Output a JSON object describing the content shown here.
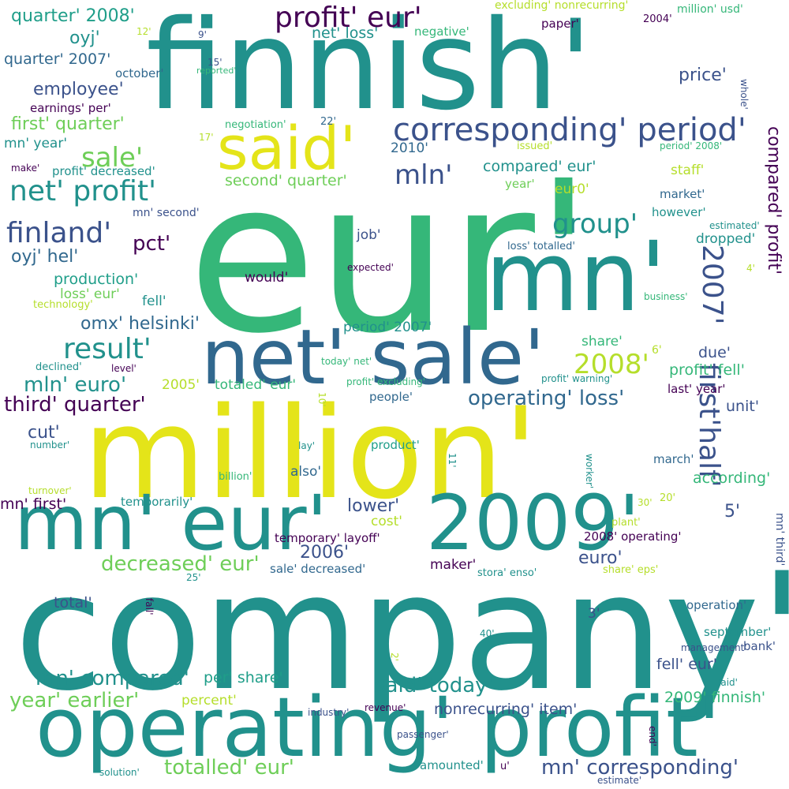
{
  "palette": {
    "dark_purple": "#440154",
    "indigo": "#3b528b",
    "slate_blue": "#31688e",
    "teal": "#21918c",
    "sea_green": "#1f9e89",
    "green": "#35b779",
    "light_green": "#6ece58",
    "lime": "#b5de2b",
    "yellow": "#e4e419"
  },
  "words": [
    {
      "text": "eur'",
      "weight": 1.0,
      "color": "green"
    },
    {
      "text": "company'",
      "weight": 0.92,
      "color": "teal"
    },
    {
      "text": "million'",
      "weight": 0.72,
      "color": "yellow"
    },
    {
      "text": "finnish'",
      "weight": 0.7,
      "color": "teal"
    },
    {
      "text": "mn'",
      "weight": 0.55,
      "color": "teal"
    },
    {
      "text": "operating' profit'",
      "weight": 0.46,
      "color": "teal"
    },
    {
      "text": "net' sale'",
      "weight": 0.43,
      "color": "slate_blue"
    },
    {
      "text": "mn' eur'",
      "weight": 0.43,
      "color": "teal"
    },
    {
      "text": "2009'",
      "weight": 0.43,
      "color": "teal"
    },
    {
      "text": "said'",
      "weight": 0.34,
      "color": "yellow"
    },
    {
      "text": "corresponding' period'",
      "weight": 0.18,
      "color": "indigo"
    },
    {
      "text": "profit' eur'",
      "weight": 0.16,
      "color": "dark_purple"
    },
    {
      "text": "net' profit'",
      "weight": 0.16,
      "color": "teal"
    },
    {
      "text": "finland'",
      "weight": 0.16,
      "color": "indigo"
    },
    {
      "text": "result'",
      "weight": 0.16,
      "color": "teal"
    },
    {
      "text": "first'half'",
      "weight": 0.16,
      "color": "indigo"
    },
    {
      "text": "2007'",
      "weight": 0.15,
      "color": "indigo"
    },
    {
      "text": "mln'",
      "weight": 0.15,
      "color": "indigo"
    },
    {
      "text": "group'",
      "weight": 0.15,
      "color": "teal"
    },
    {
      "text": "sale'",
      "weight": 0.15,
      "color": "light_green"
    },
    {
      "text": "2008'",
      "weight": 0.15,
      "color": "lime"
    },
    {
      "text": "third' quarter'",
      "weight": 0.12,
      "color": "dark_purple"
    },
    {
      "text": "mn' compared'",
      "weight": 0.12,
      "color": "teal"
    },
    {
      "text": "decreased' eur'",
      "weight": 0.12,
      "color": "light_green"
    },
    {
      "text": "totalled' eur'",
      "weight": 0.12,
      "color": "light_green"
    },
    {
      "text": "mn' corresponding'",
      "weight": 0.12,
      "color": "indigo"
    },
    {
      "text": "said' today'",
      "weight": 0.12,
      "color": "teal"
    },
    {
      "text": "operating' loss'",
      "weight": 0.12,
      "color": "slate_blue"
    },
    {
      "text": "mln' euro'",
      "weight": 0.12,
      "color": "teal"
    },
    {
      "text": "year' earlier'",
      "weight": 0.12,
      "color": "light_green"
    },
    {
      "text": "pct'",
      "weight": 0.12,
      "color": "dark_purple"
    },
    {
      "text": "first' quarter'",
      "weight": 0.1,
      "color": "light_green"
    },
    {
      "text": "oyj' hel'",
      "weight": 0.1,
      "color": "slate_blue"
    },
    {
      "text": "quarter' 2008'",
      "weight": 0.1,
      "color": "sea_green"
    },
    {
      "text": "employee'",
      "weight": 0.1,
      "color": "indigo"
    },
    {
      "text": "oyj'",
      "weight": 0.1,
      "color": "teal"
    },
    {
      "text": "price'",
      "weight": 0.1,
      "color": "indigo"
    },
    {
      "text": "compared' profit'",
      "weight": 0.1,
      "color": "dark_purple"
    },
    {
      "text": "omx' helsinki'",
      "weight": 0.1,
      "color": "slate_blue"
    },
    {
      "text": "2006'",
      "weight": 0.1,
      "color": "indigo"
    },
    {
      "text": "lower'",
      "weight": 0.1,
      "color": "indigo"
    },
    {
      "text": "5'",
      "weight": 0.1,
      "color": "indigo"
    },
    {
      "text": "cut'",
      "weight": 0.1,
      "color": "indigo"
    },
    {
      "text": "euro'",
      "weight": 0.09,
      "color": "indigo"
    },
    {
      "text": "mn' first'",
      "weight": 0.08,
      "color": "dark_purple"
    },
    {
      "text": "due'",
      "weight": 0.08,
      "color": "indigo"
    },
    {
      "text": "second' quarter'",
      "weight": 0.08,
      "color": "light_green"
    },
    {
      "text": "production'",
      "weight": 0.08,
      "color": "sea_green"
    },
    {
      "text": "profit' fell'",
      "weight": 0.08,
      "color": "green"
    },
    {
      "text": "unit'",
      "weight": 0.08,
      "color": "indigo"
    },
    {
      "text": "quarter' 2007'",
      "weight": 0.08,
      "color": "slate_blue"
    },
    {
      "text": "total'",
      "weight": 0.08,
      "color": "indigo"
    },
    {
      "text": "according'",
      "weight": 0.08,
      "color": "green"
    },
    {
      "text": "per' share'",
      "weight": 0.08,
      "color": "sea_green"
    },
    {
      "text": "nonrecurring' item'",
      "weight": 0.08,
      "color": "indigo"
    },
    {
      "text": "2009' finnish'",
      "weight": 0.08,
      "color": "green"
    },
    {
      "text": "fell' eur'",
      "weight": 0.08,
      "color": "indigo"
    },
    {
      "text": "compared' eur'",
      "weight": 0.08,
      "color": "teal"
    },
    {
      "text": "net' loss'",
      "weight": 0.08,
      "color": "teal"
    },
    {
      "text": "mn' year'",
      "weight": 0.07,
      "color": "teal"
    },
    {
      "text": "share'",
      "weight": 0.07,
      "color": "green"
    },
    {
      "text": "staff'",
      "weight": 0.07,
      "color": "lime"
    },
    {
      "text": "eur0'",
      "weight": 0.07,
      "color": "lime"
    },
    {
      "text": "job'",
      "weight": 0.07,
      "color": "indigo"
    },
    {
      "text": "dropped'",
      "weight": 0.07,
      "color": "teal"
    },
    {
      "text": "period' 2007'",
      "weight": 0.07,
      "color": "teal"
    },
    {
      "text": "2010'",
      "weight": 0.07,
      "color": "slate_blue"
    },
    {
      "text": "totaled' eur'",
      "weight": 0.07,
      "color": "green"
    },
    {
      "text": "2005'",
      "weight": 0.07,
      "color": "lime"
    },
    {
      "text": "loss' eur'",
      "weight": 0.07,
      "color": "light_green"
    },
    {
      "text": "fell'",
      "weight": 0.07,
      "color": "teal"
    },
    {
      "text": "cost'",
      "weight": 0.07,
      "color": "lime"
    },
    {
      "text": "maker'",
      "weight": 0.07,
      "color": "dark_purple"
    },
    {
      "text": "would'",
      "weight": 0.07,
      "color": "dark_purple"
    },
    {
      "text": "also'",
      "weight": 0.07,
      "color": "slate_blue"
    },
    {
      "text": "3'",
      "weight": 0.07,
      "color": "indigo"
    },
    {
      "text": "percent'",
      "weight": 0.07,
      "color": "lime"
    },
    {
      "text": "bank'",
      "weight": 0.06,
      "color": "indigo"
    },
    {
      "text": "last' year'",
      "weight": 0.06,
      "color": "dark_purple"
    },
    {
      "text": "sale' decreased'",
      "weight": 0.06,
      "color": "slate_blue"
    },
    {
      "text": "people'",
      "weight": 0.06,
      "color": "slate_blue"
    },
    {
      "text": "market'",
      "weight": 0.06,
      "color": "slate_blue"
    },
    {
      "text": "however'",
      "weight": 0.06,
      "color": "teal"
    },
    {
      "text": "march'",
      "weight": 0.06,
      "color": "slate_blue"
    },
    {
      "text": "paper'",
      "weight": 0.06,
      "color": "dark_purple"
    },
    {
      "text": "earnings' per'",
      "weight": 0.06,
      "color": "dark_purple"
    },
    {
      "text": "profit' decreased'",
      "weight": 0.06,
      "color": "teal"
    },
    {
      "text": "operation'",
      "weight": 0.06,
      "color": "slate_blue"
    },
    {
      "text": "year'",
      "weight": 0.06,
      "color": "light_green"
    },
    {
      "text": "temporarily'",
      "weight": 0.06,
      "color": "teal"
    },
    {
      "text": "product'",
      "weight": 0.06,
      "color": "sea_green"
    },
    {
      "text": "october'",
      "weight": 0.06,
      "color": "slate_blue"
    },
    {
      "text": "september'",
      "weight": 0.06,
      "color": "teal"
    },
    {
      "text": "amounted'",
      "weight": 0.06,
      "color": "teal"
    },
    {
      "text": "negative'",
      "weight": 0.06,
      "color": "green"
    },
    {
      "text": "temporary' layoff'",
      "weight": 0.06,
      "color": "dark_purple"
    },
    {
      "text": "2008' operating'",
      "weight": 0.06,
      "color": "dark_purple"
    },
    {
      "text": "mn' second'",
      "weight": 0.05,
      "color": "indigo"
    },
    {
      "text": "mn' third'",
      "weight": 0.05,
      "color": "indigo"
    },
    {
      "text": "million' usd'",
      "weight": 0.05,
      "color": "green"
    },
    {
      "text": "excluding' nonrecurring'",
      "weight": 0.05,
      "color": "lime"
    },
    {
      "text": "2004'",
      "weight": 0.05,
      "color": "dark_purple"
    },
    {
      "text": "whole'",
      "weight": 0.05,
      "color": "indigo"
    },
    {
      "text": "negotiation'",
      "weight": 0.05,
      "color": "green"
    },
    {
      "text": "22'",
      "weight": 0.05,
      "color": "slate_blue"
    },
    {
      "text": "issued'",
      "weight": 0.05,
      "color": "lime"
    },
    {
      "text": "period' 2008'",
      "weight": 0.05,
      "color": "green"
    },
    {
      "text": "estimated'",
      "weight": 0.05,
      "color": "teal"
    },
    {
      "text": "loss' totalled'",
      "weight": 0.05,
      "color": "slate_blue"
    },
    {
      "text": "expected'",
      "weight": 0.05,
      "color": "dark_purple"
    },
    {
      "text": "technology'",
      "weight": 0.05,
      "color": "lime"
    },
    {
      "text": "business'",
      "weight": 0.05,
      "color": "green"
    },
    {
      "text": "declined'",
      "weight": 0.05,
      "color": "teal"
    },
    {
      "text": "level'",
      "weight": 0.05,
      "color": "dark_purple"
    },
    {
      "text": "today' net'",
      "weight": 0.05,
      "color": "green"
    },
    {
      "text": "profit' excluding'",
      "weight": 0.05,
      "color": "green"
    },
    {
      "text": "profit' warning'",
      "weight": 0.05,
      "color": "teal"
    },
    {
      "text": "6'",
      "weight": 0.05,
      "color": "lime"
    },
    {
      "text": "number'",
      "weight": 0.05,
      "color": "teal"
    },
    {
      "text": "lay'",
      "weight": 0.05,
      "color": "teal"
    },
    {
      "text": "billion'",
      "weight": 0.05,
      "color": "green"
    },
    {
      "text": "11'",
      "weight": 0.05,
      "color": "teal"
    },
    {
      "text": "worker'",
      "weight": 0.05,
      "color": "teal"
    },
    {
      "text": "turnover'",
      "weight": 0.05,
      "color": "lime"
    },
    {
      "text": "30'",
      "weight": 0.05,
      "color": "lime"
    },
    {
      "text": "20'",
      "weight": 0.05,
      "color": "lime"
    },
    {
      "text": "plant'",
      "weight": 0.05,
      "color": "lime"
    },
    {
      "text": "stora' enso'",
      "weight": 0.05,
      "color": "teal"
    },
    {
      "text": "share' eps'",
      "weight": 0.05,
      "color": "lime"
    },
    {
      "text": "25'",
      "weight": 0.05,
      "color": "teal"
    },
    {
      "text": "fall'",
      "weight": 0.05,
      "color": "dark_purple"
    },
    {
      "text": "40'",
      "weight": 0.05,
      "color": "teal"
    },
    {
      "text": "management'",
      "weight": 0.05,
      "color": "indigo"
    },
    {
      "text": "2'",
      "weight": 0.05,
      "color": "lime"
    },
    {
      "text": "laid'",
      "weight": 0.05,
      "color": "teal"
    },
    {
      "text": "industry'",
      "weight": 0.05,
      "color": "indigo"
    },
    {
      "text": "revenue'",
      "weight": 0.05,
      "color": "dark_purple"
    },
    {
      "text": "passenger'",
      "weight": 0.05,
      "color": "indigo"
    },
    {
      "text": "end'",
      "weight": 0.05,
      "color": "dark_purple"
    },
    {
      "text": "solution'",
      "weight": 0.05,
      "color": "teal"
    },
    {
      "text": "u'",
      "weight": 0.05,
      "color": "dark_purple"
    },
    {
      "text": "estimate'",
      "weight": 0.05,
      "color": "indigo"
    },
    {
      "text": "12'",
      "weight": 0.05,
      "color": "lime"
    },
    {
      "text": "9'",
      "weight": 0.05,
      "color": "indigo"
    },
    {
      "text": "15'",
      "weight": 0.05,
      "color": "indigo"
    },
    {
      "text": "reported'",
      "weight": 0.05,
      "color": "green"
    },
    {
      "text": "17'",
      "weight": 0.05,
      "color": "lime"
    },
    {
      "text": "make'",
      "weight": 0.05,
      "color": "dark_purple"
    },
    {
      "text": "10'",
      "weight": 0.05,
      "color": "lime"
    },
    {
      "text": "4'",
      "weight": 0.05,
      "color": "lime"
    }
  ]
}
